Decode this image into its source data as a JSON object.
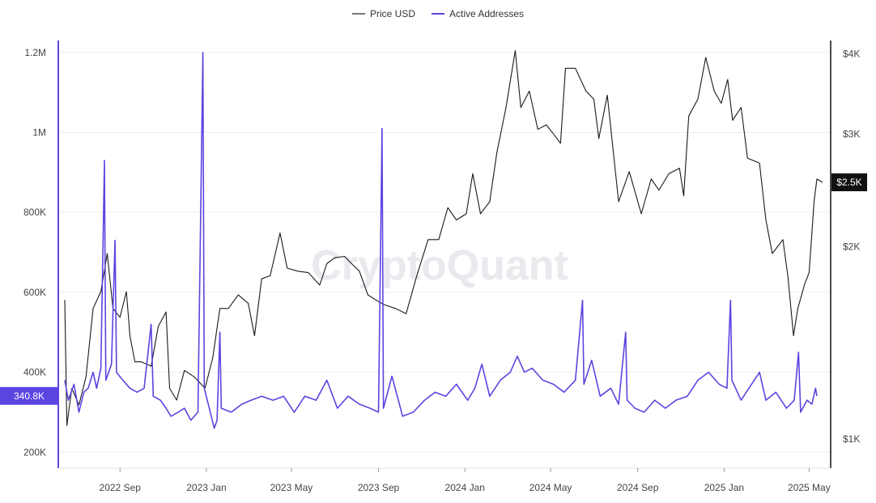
{
  "legend": {
    "price_label": "Price USD",
    "active_label": "Active Addresses"
  },
  "watermark": "CryptoQuant",
  "colors": {
    "price": "#1a1a1a",
    "active": "#5b45e0",
    "grid": "#eeeeee",
    "badge_active": "#5b45e0",
    "badge_price": "#111111"
  },
  "chart_data": {
    "type": "line",
    "x_start": "2022-06-15",
    "x_end": "2025-05-20",
    "x_ticks": [
      "2022 Sep",
      "2023 Jan",
      "2023 May",
      "2023 Sep",
      "2024 Jan",
      "2024 May",
      "2024 Sep",
      "2025 Jan",
      "2025 May"
    ],
    "left_axis": {
      "ticks": [
        "200K",
        "400K",
        "600K",
        "800K",
        "1M",
        "1.2M"
      ],
      "ylim": [
        160000,
        1230000
      ]
    },
    "right_axis": {
      "ticks": [
        "$1K",
        "$2K",
        "$3K",
        "$4K"
      ],
      "scale": "log",
      "ylim": [
        900,
        4200
      ]
    },
    "current_active_label": "340.8K",
    "current_price_label": "$2.5K",
    "series": [
      {
        "name": "Price USD",
        "axis": "right",
        "points": [
          [
            "2022-06-15",
            1650
          ],
          [
            "2022-06-18",
            1050
          ],
          [
            "2022-06-25",
            1200
          ],
          [
            "2022-07-05",
            1130
          ],
          [
            "2022-07-15",
            1250
          ],
          [
            "2022-07-25",
            1600
          ],
          [
            "2022-08-05",
            1700
          ],
          [
            "2022-08-14",
            1950
          ],
          [
            "2022-08-22",
            1600
          ],
          [
            "2022-09-01",
            1550
          ],
          [
            "2022-09-10",
            1700
          ],
          [
            "2022-09-15",
            1450
          ],
          [
            "2022-09-22",
            1320
          ],
          [
            "2022-10-01",
            1320
          ],
          [
            "2022-10-15",
            1300
          ],
          [
            "2022-10-25",
            1500
          ],
          [
            "2022-11-05",
            1580
          ],
          [
            "2022-11-10",
            1200
          ],
          [
            "2022-11-20",
            1150
          ],
          [
            "2022-12-01",
            1280
          ],
          [
            "2022-12-15",
            1250
          ],
          [
            "2022-12-30",
            1200
          ],
          [
            "2023-01-10",
            1340
          ],
          [
            "2023-01-20",
            1600
          ],
          [
            "2023-02-01",
            1600
          ],
          [
            "2023-02-15",
            1680
          ],
          [
            "2023-03-01",
            1630
          ],
          [
            "2023-03-10",
            1450
          ],
          [
            "2023-03-20",
            1780
          ],
          [
            "2023-04-01",
            1800
          ],
          [
            "2023-04-15",
            2100
          ],
          [
            "2023-04-25",
            1850
          ],
          [
            "2023-05-10",
            1830
          ],
          [
            "2023-05-25",
            1820
          ],
          [
            "2023-06-10",
            1740
          ],
          [
            "2023-06-20",
            1880
          ],
          [
            "2023-07-01",
            1920
          ],
          [
            "2023-07-15",
            1930
          ],
          [
            "2023-07-25",
            1880
          ],
          [
            "2023-08-05",
            1830
          ],
          [
            "2023-08-17",
            1680
          ],
          [
            "2023-09-01",
            1640
          ],
          [
            "2023-09-10",
            1620
          ],
          [
            "2023-09-25",
            1600
          ],
          [
            "2023-10-10",
            1570
          ],
          [
            "2023-10-25",
            1800
          ],
          [
            "2023-11-10",
            2050
          ],
          [
            "2023-11-25",
            2050
          ],
          [
            "2023-12-08",
            2300
          ],
          [
            "2023-12-20",
            2200
          ],
          [
            "2024-01-03",
            2250
          ],
          [
            "2024-01-12",
            2600
          ],
          [
            "2024-01-23",
            2250
          ],
          [
            "2024-02-05",
            2350
          ],
          [
            "2024-02-15",
            2800
          ],
          [
            "2024-02-28",
            3300
          ],
          [
            "2024-03-12",
            4050
          ],
          [
            "2024-03-20",
            3300
          ],
          [
            "2024-04-01",
            3500
          ],
          [
            "2024-04-13",
            3050
          ],
          [
            "2024-04-25",
            3100
          ],
          [
            "2024-05-05",
            3000
          ],
          [
            "2024-05-15",
            2900
          ],
          [
            "2024-05-22",
            3800
          ],
          [
            "2024-06-05",
            3800
          ],
          [
            "2024-06-20",
            3500
          ],
          [
            "2024-07-01",
            3400
          ],
          [
            "2024-07-08",
            2950
          ],
          [
            "2024-07-20",
            3450
          ],
          [
            "2024-08-05",
            2350
          ],
          [
            "2024-08-20",
            2620
          ],
          [
            "2024-09-06",
            2250
          ],
          [
            "2024-09-20",
            2550
          ],
          [
            "2024-10-01",
            2450
          ],
          [
            "2024-10-15",
            2600
          ],
          [
            "2024-10-30",
            2650
          ],
          [
            "2024-11-05",
            2400
          ],
          [
            "2024-11-12",
            3200
          ],
          [
            "2024-11-25",
            3400
          ],
          [
            "2024-12-06",
            3950
          ],
          [
            "2024-12-18",
            3500
          ],
          [
            "2024-12-28",
            3350
          ],
          [
            "2025-01-06",
            3650
          ],
          [
            "2025-01-13",
            3150
          ],
          [
            "2025-01-25",
            3300
          ],
          [
            "2025-02-03",
            2750
          ],
          [
            "2025-02-20",
            2700
          ],
          [
            "2025-03-01",
            2200
          ],
          [
            "2025-03-10",
            1950
          ],
          [
            "2025-03-25",
            2050
          ],
          [
            "2025-04-01",
            1800
          ],
          [
            "2025-04-09",
            1450
          ],
          [
            "2025-04-15",
            1600
          ],
          [
            "2025-04-25",
            1750
          ],
          [
            "2025-05-01",
            1820
          ],
          [
            "2025-05-08",
            2350
          ],
          [
            "2025-05-12",
            2550
          ],
          [
            "2025-05-20",
            2520
          ]
        ]
      },
      {
        "name": "Active Addresses",
        "axis": "left",
        "points": [
          [
            "2022-06-15",
            380000
          ],
          [
            "2022-06-20",
            330000
          ],
          [
            "2022-06-28",
            370000
          ],
          [
            "2022-07-05",
            300000
          ],
          [
            "2022-07-12",
            350000
          ],
          [
            "2022-07-18",
            360000
          ],
          [
            "2022-07-25",
            400000
          ],
          [
            "2022-07-30",
            360000
          ],
          [
            "2022-08-05",
            410000
          ],
          [
            "2022-08-10",
            930000
          ],
          [
            "2022-08-12",
            380000
          ],
          [
            "2022-08-20",
            420000
          ],
          [
            "2022-08-25",
            730000
          ],
          [
            "2022-08-27",
            400000
          ],
          [
            "2022-09-05",
            380000
          ],
          [
            "2022-09-15",
            360000
          ],
          [
            "2022-09-25",
            350000
          ],
          [
            "2022-10-05",
            360000
          ],
          [
            "2022-10-15",
            520000
          ],
          [
            "2022-10-18",
            340000
          ],
          [
            "2022-10-28",
            330000
          ],
          [
            "2022-11-05",
            310000
          ],
          [
            "2022-11-12",
            290000
          ],
          [
            "2022-11-22",
            300000
          ],
          [
            "2022-12-01",
            310000
          ],
          [
            "2022-12-10",
            280000
          ],
          [
            "2022-12-20",
            300000
          ],
          [
            "2022-12-27",
            1200000
          ],
          [
            "2022-12-29",
            360000
          ],
          [
            "2023-01-05",
            310000
          ],
          [
            "2023-01-12",
            260000
          ],
          [
            "2023-01-16",
            280000
          ],
          [
            "2023-01-20",
            500000
          ],
          [
            "2023-01-22",
            310000
          ],
          [
            "2023-02-05",
            300000
          ],
          [
            "2023-02-20",
            320000
          ],
          [
            "2023-03-05",
            330000
          ],
          [
            "2023-03-20",
            340000
          ],
          [
            "2023-04-05",
            330000
          ],
          [
            "2023-04-20",
            340000
          ],
          [
            "2023-05-05",
            300000
          ],
          [
            "2023-05-20",
            340000
          ],
          [
            "2023-06-05",
            330000
          ],
          [
            "2023-06-20",
            380000
          ],
          [
            "2023-07-05",
            310000
          ],
          [
            "2023-07-20",
            340000
          ],
          [
            "2023-08-05",
            320000
          ],
          [
            "2023-08-20",
            310000
          ],
          [
            "2023-09-01",
            300000
          ],
          [
            "2023-09-06",
            1010000
          ],
          [
            "2023-09-08",
            310000
          ],
          [
            "2023-09-20",
            390000
          ],
          [
            "2023-10-05",
            290000
          ],
          [
            "2023-10-20",
            300000
          ],
          [
            "2023-11-05",
            330000
          ],
          [
            "2023-11-20",
            350000
          ],
          [
            "2023-12-05",
            340000
          ],
          [
            "2023-12-20",
            370000
          ],
          [
            "2024-01-05",
            330000
          ],
          [
            "2024-01-15",
            360000
          ],
          [
            "2024-01-25",
            420000
          ],
          [
            "2024-02-05",
            340000
          ],
          [
            "2024-02-20",
            380000
          ],
          [
            "2024-03-05",
            400000
          ],
          [
            "2024-03-15",
            440000
          ],
          [
            "2024-03-25",
            400000
          ],
          [
            "2024-04-05",
            410000
          ],
          [
            "2024-04-20",
            380000
          ],
          [
            "2024-05-05",
            370000
          ],
          [
            "2024-05-20",
            350000
          ],
          [
            "2024-06-05",
            380000
          ],
          [
            "2024-06-15",
            580000
          ],
          [
            "2024-06-17",
            370000
          ],
          [
            "2024-06-28",
            430000
          ],
          [
            "2024-07-10",
            340000
          ],
          [
            "2024-07-25",
            360000
          ],
          [
            "2024-08-05",
            320000
          ],
          [
            "2024-08-15",
            500000
          ],
          [
            "2024-08-17",
            330000
          ],
          [
            "2024-08-28",
            310000
          ],
          [
            "2024-09-10",
            300000
          ],
          [
            "2024-09-25",
            330000
          ],
          [
            "2024-10-10",
            310000
          ],
          [
            "2024-10-25",
            330000
          ],
          [
            "2024-11-10",
            340000
          ],
          [
            "2024-11-25",
            380000
          ],
          [
            "2024-12-10",
            400000
          ],
          [
            "2024-12-25",
            370000
          ],
          [
            "2025-01-05",
            360000
          ],
          [
            "2025-01-10",
            580000
          ],
          [
            "2025-01-12",
            380000
          ],
          [
            "2025-01-25",
            330000
          ],
          [
            "2025-02-05",
            360000
          ],
          [
            "2025-02-20",
            400000
          ],
          [
            "2025-03-01",
            330000
          ],
          [
            "2025-03-15",
            350000
          ],
          [
            "2025-03-30",
            310000
          ],
          [
            "2025-04-10",
            330000
          ],
          [
            "2025-04-16",
            450000
          ],
          [
            "2025-04-19",
            300000
          ],
          [
            "2025-04-28",
            330000
          ],
          [
            "2025-05-05",
            320000
          ],
          [
            "2025-05-10",
            360000
          ],
          [
            "2025-05-12",
            340800
          ]
        ]
      }
    ]
  }
}
